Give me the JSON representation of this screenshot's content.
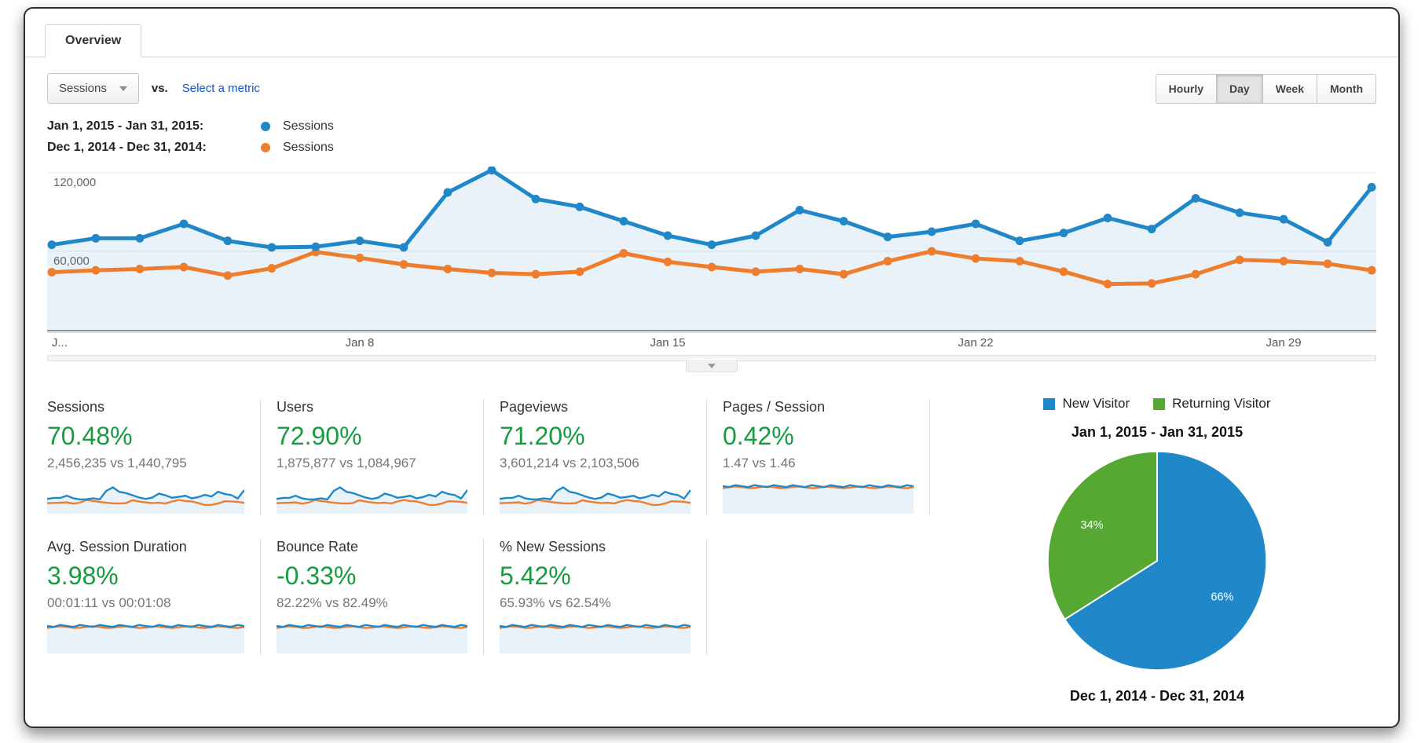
{
  "tab": {
    "label": "Overview"
  },
  "controls": {
    "metric_selector": "Sessions",
    "vs_label": "vs.",
    "select_metric_label": "Select a metric",
    "granularity": [
      {
        "label": "Hourly",
        "active": false
      },
      {
        "label": "Day",
        "active": true
      },
      {
        "label": "Week",
        "active": false
      },
      {
        "label": "Month",
        "active": false
      }
    ]
  },
  "legend": [
    {
      "date_range": "Jan 1, 2015 - Jan 31, 2015:",
      "metric": "Sessions",
      "color": "#2088c9"
    },
    {
      "date_range": "Dec 1, 2014 - Dec 31, 2014:",
      "metric": "Sessions",
      "color": "#ee7e2d"
    }
  ],
  "colors": {
    "blue": "#2088c9",
    "orange": "#ee7e2d",
    "green": "#55a932",
    "positive": "#169c3e",
    "area_fill": "#e9f2f9",
    "link": "#1155cc"
  },
  "chart_data": [
    {
      "id": "sessions-by-day",
      "type": "line",
      "x_unit": "day of month (1-31)",
      "x_tick_labels": [
        {
          "day": 1,
          "label": "J..."
        },
        {
          "day": 8,
          "label": "Jan 8"
        },
        {
          "day": 15,
          "label": "Jan 15"
        },
        {
          "day": 22,
          "label": "Jan 22"
        },
        {
          "day": 29,
          "label": "Jan 29"
        }
      ],
      "ylim": [
        0,
        132000
      ],
      "yticks": [
        {
          "value": 60000,
          "label": "60,000"
        },
        {
          "value": 120000,
          "label": "120,000"
        }
      ],
      "grid": true,
      "legend_position": "top-left",
      "series": [
        {
          "name": "Sessions — Jan 1, 2015 - Jan 31, 2015",
          "color": "#2088c9",
          "values": [
            65000,
            70000,
            70000,
            81000,
            68000,
            63000,
            63500,
            68000,
            63000,
            105000,
            122000,
            100000,
            94000,
            83000,
            72000,
            65000,
            72000,
            91500,
            83000,
            71000,
            75000,
            81000,
            68000,
            74000,
            85500,
            77000,
            100500,
            89500,
            84500,
            67000,
            109000
          ]
        },
        {
          "name": "Sessions — Dec 1, 2014 - Dec 31, 2014",
          "color": "#ee7e2d",
          "values": [
            44000,
            45500,
            46500,
            48000,
            41500,
            47000,
            59500,
            55000,
            50000,
            46500,
            43500,
            42500,
            44500,
            58500,
            52000,
            48000,
            44500,
            46500,
            42500,
            52500,
            60000,
            54500,
            52500,
            44500,
            35000,
            35500,
            42500,
            53500,
            52500,
            50500,
            45500
          ]
        }
      ]
    },
    {
      "id": "visitor-type",
      "type": "pie",
      "title": "Jan 1, 2015 - Jan 31, 2015",
      "footer_label": "Dec 1, 2014 - Dec 31, 2014",
      "legend": [
        {
          "label": "New Visitor",
          "color": "#2088c9"
        },
        {
          "label": "Returning Visitor",
          "color": "#55a932"
        }
      ],
      "slices": [
        {
          "label": "New Visitor",
          "value": 66,
          "display": "66%",
          "color": "#2088c9"
        },
        {
          "label": "Returning Visitor",
          "value": 34,
          "display": "34%",
          "color": "#55a932"
        }
      ]
    }
  ],
  "metrics": {
    "cards": [
      {
        "title": "Sessions",
        "change": "70.48%",
        "comparison": "2,456,235 vs 1,440,795",
        "sparkline": "volume"
      },
      {
        "title": "Users",
        "change": "72.90%",
        "comparison": "1,875,877 vs 1,084,967",
        "sparkline": "volume"
      },
      {
        "title": "Pageviews",
        "change": "71.20%",
        "comparison": "3,601,214 vs 2,103,506",
        "sparkline": "volume"
      },
      {
        "title": "Pages / Session",
        "change": "0.42%",
        "comparison": "1.47 vs 1.46",
        "sparkline": "flat"
      },
      {
        "title": "Avg. Session Duration",
        "change": "3.98%",
        "comparison": "00:01:11 vs 00:01:08",
        "sparkline": "flat"
      },
      {
        "title": "Bounce Rate",
        "change": "-0.33%",
        "comparison": "82.22% vs 82.49%",
        "sparkline": "flat"
      },
      {
        "title": "% New Sessions",
        "change": "5.42%",
        "comparison": "65.93% vs 62.54%",
        "sparkline": "flat"
      }
    ]
  }
}
